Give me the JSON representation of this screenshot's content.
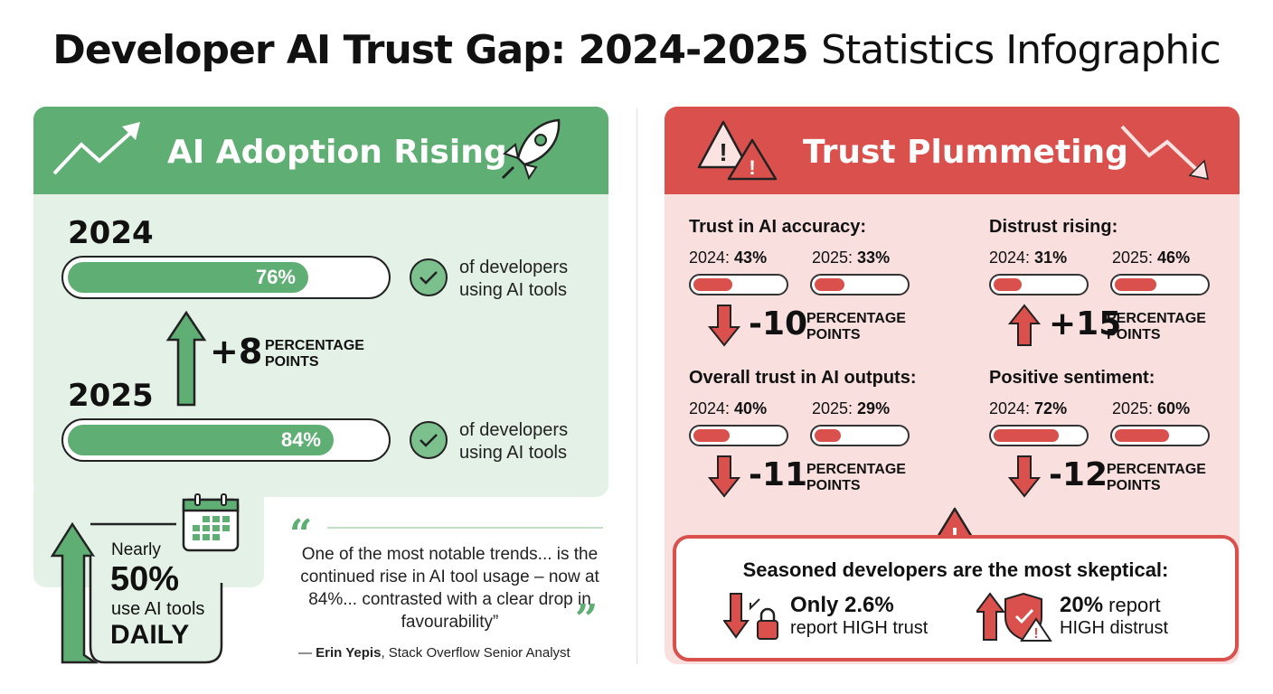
{
  "title": {
    "bold": "Developer AI Trust Gap: 2024-2025",
    "light": "Statistics Infographic"
  },
  "left": {
    "header": "AI Adoption Rising",
    "rows": [
      {
        "year": "2024",
        "value": 76,
        "label": "76%",
        "desc1": "of developers",
        "desc2": "using AI tools"
      },
      {
        "year": "2025",
        "value": 84,
        "label": "84%",
        "desc1": "of developers",
        "desc2": "using AI tools"
      }
    ],
    "change": {
      "value": "+8",
      "unit1": "PERCENTAGE",
      "unit2": "POINTS"
    },
    "daily": {
      "pre": "Nearly",
      "value": "50%",
      "mid": "use AI tools",
      "post": "DAILY"
    },
    "quote": {
      "text": "One of the most notable trends... is the continued rise in AI tool usage – now at 84%... contrasted with a clear drop in favourability”",
      "author": "Erin Yepis",
      "role": ", Stack Overflow Senior Analyst",
      "dash": "— "
    }
  },
  "right": {
    "header": "Trust Plummeting",
    "stats": [
      {
        "title": "Trust in AI accuracy:",
        "y1": "2024: ",
        "v1": "43%",
        "p1": 43,
        "y2": "2025: ",
        "v2": "33%",
        "p2": 33,
        "delta": "-10",
        "dir": "down"
      },
      {
        "title": "Distrust rising:",
        "y1": "2024: ",
        "v1": "31%",
        "p1": 31,
        "y2": "2025: ",
        "v2": "46%",
        "p2": 46,
        "delta": "+15",
        "dir": "up"
      },
      {
        "title": "Overall trust in AI outputs:",
        "y1": "2024: ",
        "v1": "40%",
        "p1": 40,
        "y2": "2025: ",
        "v2": "29%",
        "p2": 29,
        "delta": "-11",
        "dir": "down"
      },
      {
        "title": "Positive sentiment:",
        "y1": "2024: ",
        "v1": "72%",
        "p1": 72,
        "y2": "2025: ",
        "v2": "60%",
        "p2": 60,
        "delta": "-12",
        "dir": "down"
      }
    ],
    "unit1": "PERCENTAGE",
    "unit2": "POINTS",
    "box": {
      "title": "Seasoned developers are the most skeptical:",
      "a_bold": "Only 2.6%",
      "a_text": "report HIGH trust",
      "b_bold": "20%",
      "b_text": " report",
      "b_text2": "HIGH distrust"
    }
  },
  "colors": {
    "green": "#5fae74",
    "lightgreen": "#e3f1e6",
    "red": "#d9504c",
    "lightred": "#f9e0df"
  }
}
